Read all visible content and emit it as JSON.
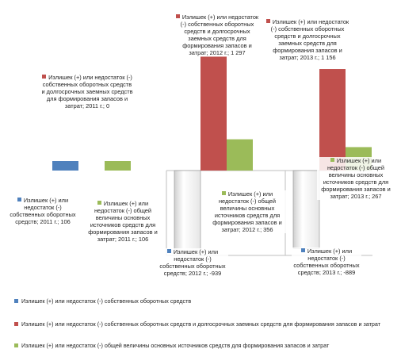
{
  "chart_data": {
    "type": "bar",
    "categories": [
      "2011 г.",
      "2012 г.",
      "2013 г."
    ],
    "series": [
      {
        "name": "Излишек (+) или недостаток (-) собственных оборотных средств",
        "values": [
          106,
          -939,
          -889
        ],
        "color": "#4f81bd"
      },
      {
        "name": "Излишек (+) или недостаток (-) собственных оборотных средств и долгосрочных заемных средств для формирования запасов и затрат",
        "values": [
          0,
          1297,
          1156
        ],
        "color": "#c0504d"
      },
      {
        "name": "Излишек (+) или недостаток (-) общей величины основных источников средств для формирования запасов и затрат",
        "values": [
          106,
          356,
          267
        ],
        "color": "#9bbb59"
      }
    ],
    "ylim": [
      -1100,
      1450
    ],
    "grid": false,
    "legend_position": "bottom",
    "data_labels": [
      {
        "series": 0,
        "category": 0,
        "text": "Излишек (+) или недостаток (-) собственных оборотных средств; 2011 г.; 106"
      },
      {
        "series": 1,
        "category": 0,
        "text": "Излишек (+) или недостаток (-) собственных оборотных средств и долгосрочных заемных средств для формирования запасов и затрат; 2011 г.; 0"
      },
      {
        "series": 2,
        "category": 0,
        "text": "Излишек (+) или недостаток (-) общей величины основных источников средств для формирования запасов и затрат; 2011 г.; 106"
      },
      {
        "series": 0,
        "category": 1,
        "text": "Излишек (+) или недостаток (-) собственных оборотных средств; 2012 г.; -939"
      },
      {
        "series": 1,
        "category": 1,
        "text": "Излишек (+) или недостаток (-) собственных оборотных средств и долгосрочных заемных средств для формирования запасов и затрат; 2012 г.; 1 297"
      },
      {
        "series": 2,
        "category": 1,
        "text": "Излишек (+) или недостаток (-) общей величины основных источников средств для формирования запасов и затрат; 2012 г.; 356"
      },
      {
        "series": 0,
        "category": 2,
        "text": "Излишек (+) или недостаток (-) собственных оборотных средств; 2013 г.; -889"
      },
      {
        "series": 1,
        "category": 2,
        "text": "Излишек (+) или недостаток (-) собственных оборотных средств и долгосрочных заемных средств для формирования запасов и затрат; 2013 г.; 1 156"
      },
      {
        "series": 2,
        "category": 2,
        "text": "Излишек (+) или недостаток (-) общей величины основных источников средств для формирования запасов и затрат; 2013 г.; 267"
      }
    ]
  }
}
